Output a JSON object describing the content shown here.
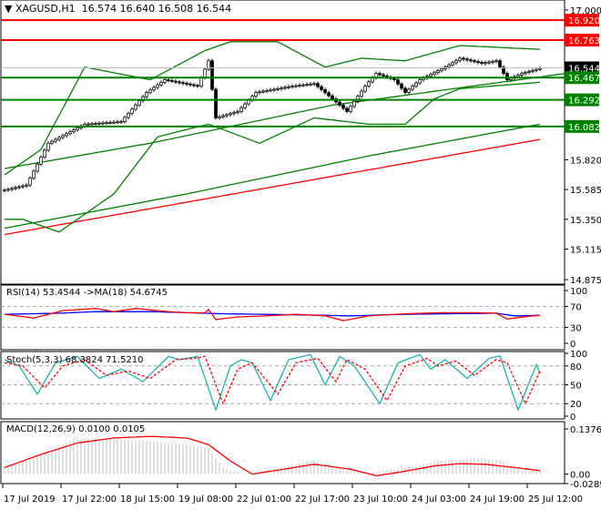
{
  "header": {
    "symbol": "XAGUSD,H1",
    "ohlc": "16.574 16.640 16.508 16.544"
  },
  "colors": {
    "up": "#000000",
    "down": "#000000",
    "ma_fast": "#ff0000",
    "ma_slow": "#0000ff",
    "bands": "#008000",
    "level_red": "#ff0000",
    "level_green": "#008000",
    "rsi": "#ff0000",
    "rsi_ma": "#0000ff",
    "stoch_main": "#20b2aa",
    "stoch_signal": "#ff0000",
    "macd_hist": "#c0c0c0",
    "macd_signal": "#ff0000"
  },
  "chart_data": [
    {
      "type": "candlestick",
      "name": "price",
      "ylim": [
        14.875,
        17.0
      ],
      "yticks": [
        "17.000",
        "16.920",
        "16.763",
        "16.544",
        "16.467",
        "16.292",
        "16.082",
        "15.820",
        "15.585",
        "15.350",
        "15.115",
        "14.875"
      ],
      "current_price": "16.544",
      "levels": [
        {
          "value": 16.92,
          "label": "16.920",
          "color": "red"
        },
        {
          "value": 16.763,
          "label": "16.763",
          "color": "red"
        },
        {
          "value": 16.467,
          "label": "16.467",
          "color": "green"
        },
        {
          "value": 16.292,
          "label": "16.292",
          "color": "green"
        },
        {
          "value": 16.082,
          "label": "16.082",
          "color": "green"
        }
      ],
      "close": [
        [
          0,
          15.58
        ],
        [
          6,
          15.62
        ],
        [
          12,
          15.95
        ],
        [
          22,
          16.1
        ],
        [
          32,
          16.12
        ],
        [
          39,
          16.35
        ],
        [
          44,
          16.45
        ],
        [
          53,
          16.4
        ],
        [
          56,
          16.6
        ],
        [
          58,
          16.15
        ],
        [
          64,
          16.2
        ],
        [
          69,
          16.35
        ],
        [
          79,
          16.4
        ],
        [
          85,
          16.42
        ],
        [
          90,
          16.3
        ],
        [
          94,
          16.2
        ],
        [
          99,
          16.4
        ],
        [
          102,
          16.5
        ],
        [
          107,
          16.45
        ],
        [
          110,
          16.35
        ],
        [
          114,
          16.45
        ],
        [
          121,
          16.55
        ],
        [
          125,
          16.62
        ],
        [
          131,
          16.58
        ],
        [
          135,
          16.6
        ],
        [
          138,
          16.45
        ],
        [
          142,
          16.5
        ],
        [
          147,
          16.54
        ]
      ],
      "ma_slow_red": [
        [
          0,
          15.23
        ],
        [
          147,
          15.98
        ]
      ],
      "ma_slow_green": [
        [
          0,
          15.28
        ],
        [
          50,
          15.55
        ],
        [
          100,
          15.85
        ],
        [
          147,
          16.1
        ]
      ],
      "ma_mid_green": [
        [
          0,
          15.75
        ],
        [
          40,
          15.95
        ],
        [
          90,
          16.25
        ],
        [
          154,
          16.5
        ]
      ],
      "boll_upper": [
        [
          0,
          15.7
        ],
        [
          10,
          15.9
        ],
        [
          22,
          16.55
        ],
        [
          40,
          16.45
        ],
        [
          55,
          16.68
        ],
        [
          62,
          16.75
        ],
        [
          75,
          16.75
        ],
        [
          88,
          16.55
        ],
        [
          98,
          16.62
        ],
        [
          110,
          16.6
        ],
        [
          125,
          16.72
        ],
        [
          147,
          16.69
        ]
      ],
      "boll_lower": [
        [
          0,
          15.35
        ],
        [
          5,
          15.35
        ],
        [
          15,
          15.25
        ],
        [
          30,
          15.55
        ],
        [
          42,
          16.0
        ],
        [
          56,
          16.1
        ],
        [
          70,
          15.95
        ],
        [
          85,
          16.15
        ],
        [
          100,
          16.1
        ],
        [
          110,
          16.1
        ],
        [
          118,
          16.3
        ],
        [
          125,
          16.38
        ],
        [
          147,
          16.43
        ]
      ]
    },
    {
      "type": "line",
      "name": "RSI(14) 53.4544  ->MA(18) 54.6745",
      "ylim": [
        0,
        100
      ],
      "yticks": [
        "100",
        "70",
        "30",
        "0"
      ],
      "rsi": [
        [
          0,
          55
        ],
        [
          8,
          48
        ],
        [
          16,
          62
        ],
        [
          25,
          66
        ],
        [
          30,
          60
        ],
        [
          36,
          66
        ],
        [
          45,
          60
        ],
        [
          50,
          58
        ],
        [
          55,
          58
        ],
        [
          56,
          64
        ],
        [
          58,
          45
        ],
        [
          64,
          50
        ],
        [
          72,
          52
        ],
        [
          80,
          55
        ],
        [
          88,
          52
        ],
        [
          93,
          43
        ],
        [
          100,
          52
        ],
        [
          110,
          56
        ],
        [
          120,
          58
        ],
        [
          130,
          58
        ],
        [
          135,
          57
        ],
        [
          138,
          46
        ],
        [
          145,
          52
        ],
        [
          147,
          53
        ]
      ],
      "ma": [
        [
          0,
          55
        ],
        [
          15,
          57
        ],
        [
          25,
          60
        ],
        [
          40,
          60
        ],
        [
          60,
          56
        ],
        [
          80,
          54
        ],
        [
          95,
          52
        ],
        [
          110,
          55
        ],
        [
          135,
          57
        ],
        [
          140,
          52
        ],
        [
          147,
          53
        ]
      ]
    },
    {
      "type": "line",
      "name": "Stoch(5,3,3) 68.3824 71.5210",
      "ylim": [
        0,
        100
      ],
      "yticks": [
        "100",
        "80",
        "50",
        "20",
        "0"
      ],
      "main": [
        [
          0,
          90
        ],
        [
          4,
          80
        ],
        [
          9,
          35
        ],
        [
          14,
          85
        ],
        [
          20,
          95
        ],
        [
          26,
          60
        ],
        [
          32,
          75
        ],
        [
          38,
          55
        ],
        [
          45,
          95
        ],
        [
          48,
          90
        ],
        [
          53,
          95
        ],
        [
          58,
          10
        ],
        [
          62,
          80
        ],
        [
          65,
          90
        ],
        [
          68,
          85
        ],
        [
          73,
          25
        ],
        [
          78,
          90
        ],
        [
          84,
          98
        ],
        [
          88,
          50
        ],
        [
          92,
          95
        ],
        [
          96,
          80
        ],
        [
          103,
          20
        ],
        [
          108,
          85
        ],
        [
          114,
          98
        ],
        [
          117,
          75
        ],
        [
          121,
          90
        ],
        [
          127,
          60
        ],
        [
          133,
          92
        ],
        [
          136,
          96
        ],
        [
          141,
          10
        ],
        [
          146,
          82
        ],
        [
          147,
          68
        ]
      ],
      "signal": [
        [
          0,
          85
        ],
        [
          5,
          80
        ],
        [
          11,
          45
        ],
        [
          16,
          80
        ],
        [
          22,
          90
        ],
        [
          28,
          65
        ],
        [
          34,
          72
        ],
        [
          40,
          60
        ],
        [
          47,
          90
        ],
        [
          52,
          92
        ],
        [
          55,
          95
        ],
        [
          60,
          20
        ],
        [
          64,
          75
        ],
        [
          68,
          85
        ],
        [
          75,
          35
        ],
        [
          80,
          85
        ],
        [
          86,
          92
        ],
        [
          91,
          55
        ],
        [
          94,
          90
        ],
        [
          99,
          75
        ],
        [
          105,
          25
        ],
        [
          110,
          80
        ],
        [
          116,
          92
        ],
        [
          119,
          80
        ],
        [
          124,
          88
        ],
        [
          129,
          65
        ],
        [
          135,
          90
        ],
        [
          138,
          85
        ],
        [
          143,
          20
        ],
        [
          147,
          72
        ]
      ]
    },
    {
      "type": "bar+line",
      "name": "MACD(12,26,9) 0.0100 0.0105",
      "ylim": [
        -0.0289,
        0.1376
      ],
      "yticks": [
        "0.1376",
        "0.00",
        "-0.0289"
      ],
      "histogram": [
        [
          0,
          0.02
        ],
        [
          10,
          0.06
        ],
        [
          18,
          0.1
        ],
        [
          25,
          0.11
        ],
        [
          40,
          0.1
        ],
        [
          50,
          0.09
        ],
        [
          56,
          0.08
        ],
        [
          60,
          0.02
        ],
        [
          66,
          -0.005
        ],
        [
          75,
          0.02
        ],
        [
          85,
          0.04
        ],
        [
          92,
          0.02
        ],
        [
          100,
          0.005
        ],
        [
          110,
          0.02
        ],
        [
          120,
          0.04
        ],
        [
          130,
          0.05
        ],
        [
          136,
          0.04
        ],
        [
          142,
          0.01
        ],
        [
          147,
          0.01
        ]
      ],
      "signal": [
        [
          0,
          0.02
        ],
        [
          10,
          0.06
        ],
        [
          20,
          0.095
        ],
        [
          30,
          0.11
        ],
        [
          40,
          0.115
        ],
        [
          50,
          0.11
        ],
        [
          56,
          0.09
        ],
        [
          62,
          0.04
        ],
        [
          68,
          0.0
        ],
        [
          75,
          0.012
        ],
        [
          85,
          0.03
        ],
        [
          95,
          0.015
        ],
        [
          102,
          -0.005
        ],
        [
          108,
          0.005
        ],
        [
          118,
          0.025
        ],
        [
          125,
          0.032
        ],
        [
          132,
          0.03
        ],
        [
          140,
          0.02
        ],
        [
          147,
          0.0105
        ]
      ]
    }
  ],
  "time_axis": [
    {
      "bar": 0,
      "label": "17 Jul 2019"
    },
    {
      "bar": 16,
      "label": "17 Jul 22:00"
    },
    {
      "bar": 32,
      "label": "18 Jul 15:00"
    },
    {
      "bar": 48,
      "label": "19 Jul 08:00"
    },
    {
      "bar": 64,
      "label": "22 Jul 01:00"
    },
    {
      "bar": 80,
      "label": "22 Jul 17:00"
    },
    {
      "bar": 96,
      "label": "23 Jul 10:00"
    },
    {
      "bar": 112,
      "label": "24 Jul 03:00"
    },
    {
      "bar": 128,
      "label": "24 Jul 19:00"
    },
    {
      "bar": 144,
      "label": "25 Jul 12:00"
    }
  ]
}
